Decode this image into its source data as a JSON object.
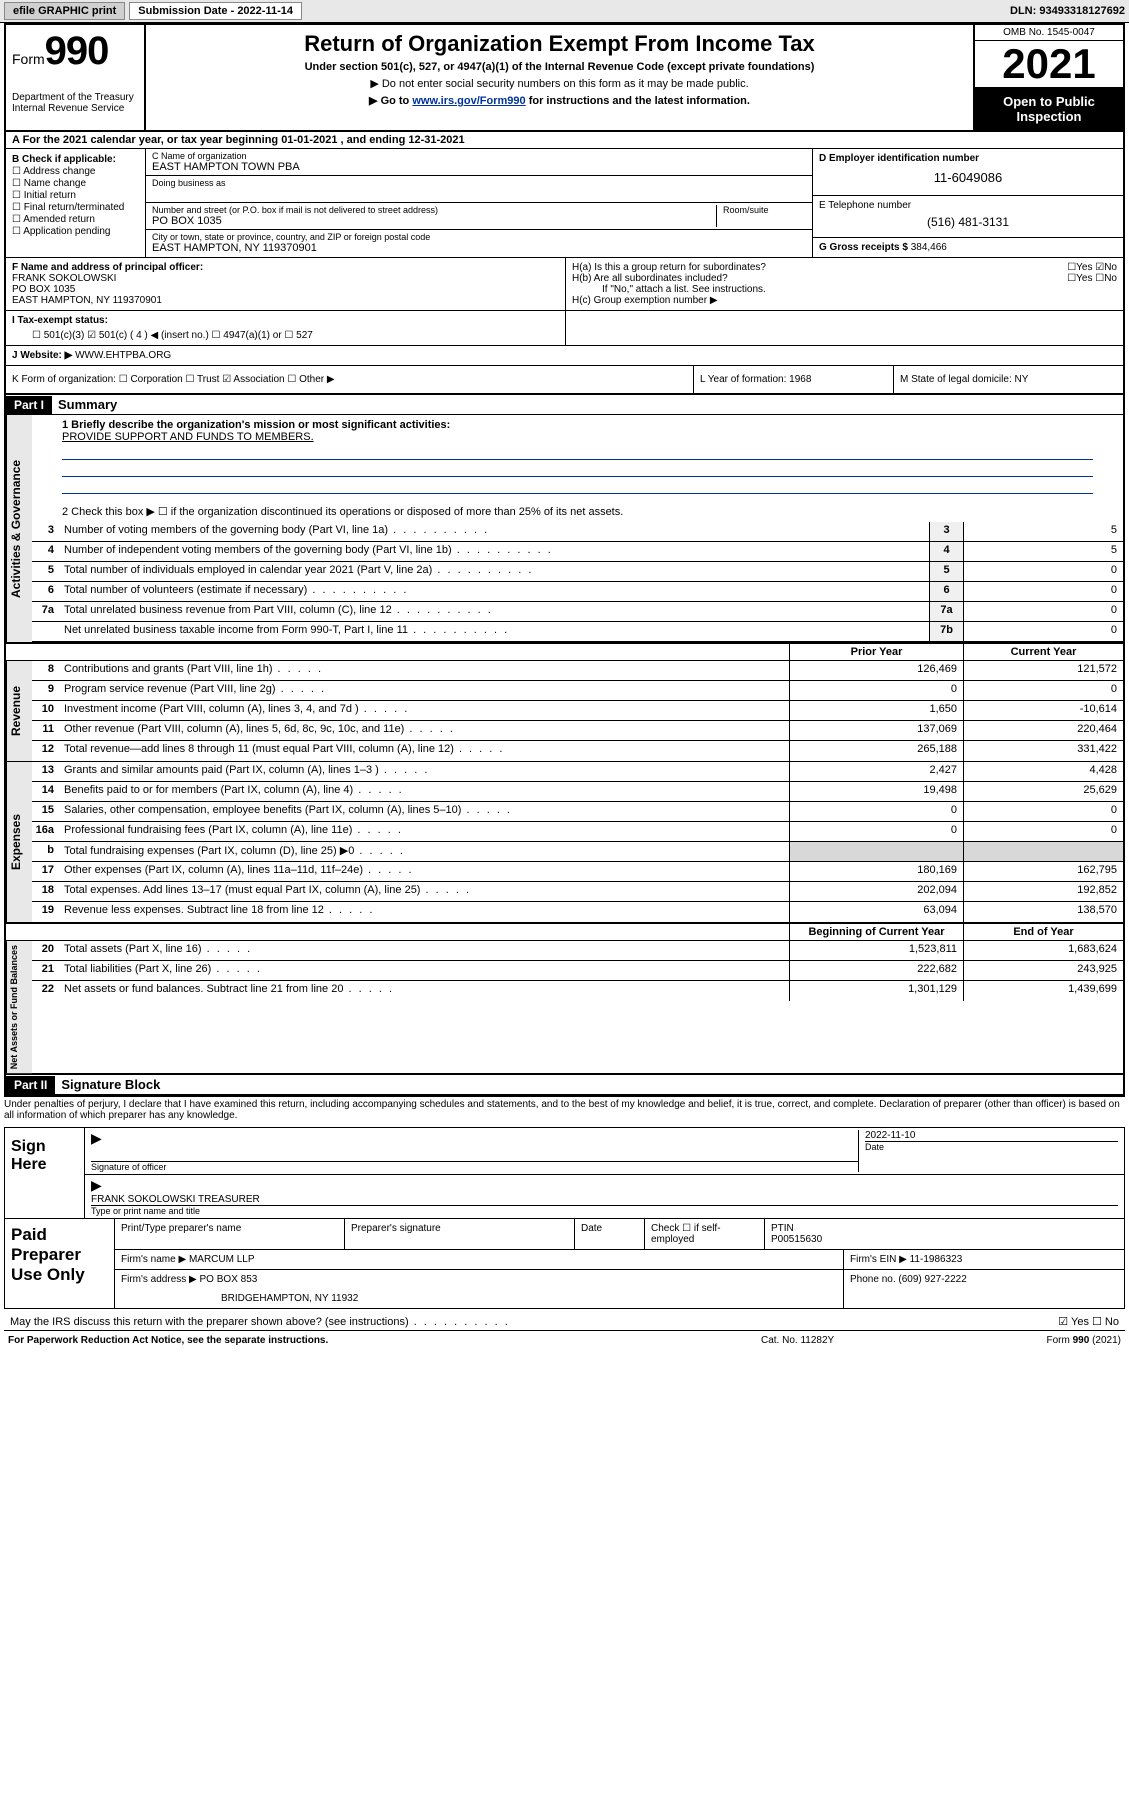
{
  "topbar": {
    "efile": "efile GRAPHIC print",
    "submission_label": "Submission Date - 2022-11-14",
    "dln": "DLN: 93493318127692"
  },
  "header": {
    "form_label": "Form",
    "form_num": "990",
    "dept": "Department of the Treasury Internal Revenue Service",
    "title": "Return of Organization Exempt From Income Tax",
    "sub": "Under section 501(c), 527, or 4947(a)(1) of the Internal Revenue Code (except private foundations)",
    "note1": "▶ Do not enter social security numbers on this form as it may be made public.",
    "note2_pre": "▶ Go to ",
    "note2_link": "www.irs.gov/Form990",
    "note2_post": " for instructions and the latest information.",
    "omb": "OMB No. 1545-0047",
    "year": "2021",
    "open": "Open to Public Inspection"
  },
  "row_a": "A For the 2021 calendar year, or tax year beginning 01-01-2021   , and ending 12-31-2021",
  "section_b": {
    "label": "B Check if applicable:",
    "opts": [
      "Address change",
      "Name change",
      "Initial return",
      "Final return/terminated",
      "Amended return",
      "Application pending"
    ]
  },
  "section_c": {
    "name_label": "C Name of organization",
    "name": "EAST HAMPTON TOWN PBA",
    "dba_label": "Doing business as",
    "addr_label": "Number and street (or P.O. box if mail is not delivered to street address)",
    "room_label": "Room/suite",
    "addr": "PO BOX 1035",
    "city_label": "City or town, state or province, country, and ZIP or foreign postal code",
    "city": "EAST HAMPTON, NY  119370901"
  },
  "section_d": {
    "label": "D Employer identification number",
    "ein": "11-6049086",
    "tel_label": "E Telephone number",
    "tel": "(516) 481-3131",
    "gross_label": "G Gross receipts $",
    "gross": "384,466"
  },
  "section_f": {
    "label": "F Name and address of principal officer:",
    "name": "FRANK SOKOLOWSKI",
    "addr1": "PO BOX 1035",
    "addr2": "EAST HAMPTON, NY  119370901"
  },
  "section_h": {
    "a": "H(a)  Is this a group return for subordinates?",
    "a_ans": "☐Yes ☑No",
    "b": "H(b)  Are all subordinates included?",
    "b_ans": "☐Yes ☐No",
    "b_note": "If \"No,\" attach a list. See instructions.",
    "c": "H(c)  Group exemption number ▶"
  },
  "section_i": {
    "label": "I   Tax-exempt status:",
    "opts": "☐ 501(c)(3)   ☑ 501(c) ( 4 ) ◀ (insert no.)   ☐ 4947(a)(1) or   ☐ 527"
  },
  "section_j": {
    "label": "J   Website: ▶",
    "val": "WWW.EHTPBA.ORG"
  },
  "section_k": "K Form of organization:  ☐ Corporation  ☐ Trust  ☑ Association  ☐ Other ▶",
  "section_l": "L Year of formation: 1968",
  "section_m": "M State of legal domicile: NY",
  "part1": {
    "hdr": "Part I",
    "title": "Summary",
    "line1": "1   Briefly describe the organization's mission or most significant activities:",
    "mission": "PROVIDE SUPPORT AND FUNDS TO MEMBERS.",
    "line2": "2   Check this box ▶ ☐  if the organization discontinued its operations or disposed of more than 25% of its net assets.",
    "vtab_gov": "Activities & Governance",
    "vtab_rev": "Revenue",
    "vtab_exp": "Expenses",
    "vtab_net": "Net Assets or Fund Balances",
    "col_prior": "Prior Year",
    "col_current": "Current Year",
    "col_begin": "Beginning of Current Year",
    "col_end": "End of Year",
    "lines_gov": [
      {
        "n": "3",
        "d": "Number of voting members of the governing body (Part VI, line 1a)",
        "box": "3",
        "v": "5"
      },
      {
        "n": "4",
        "d": "Number of independent voting members of the governing body (Part VI, line 1b)",
        "box": "4",
        "v": "5"
      },
      {
        "n": "5",
        "d": "Total number of individuals employed in calendar year 2021 (Part V, line 2a)",
        "box": "5",
        "v": "0"
      },
      {
        "n": "6",
        "d": "Total number of volunteers (estimate if necessary)",
        "box": "6",
        "v": "0"
      },
      {
        "n": "7a",
        "d": "Total unrelated business revenue from Part VIII, column (C), line 12",
        "box": "7a",
        "v": "0"
      },
      {
        "n": "",
        "d": "Net unrelated business taxable income from Form 990-T, Part I, line 11",
        "box": "7b",
        "v": "0"
      }
    ],
    "lines_rev": [
      {
        "n": "8",
        "d": "Contributions and grants (Part VIII, line 1h)",
        "p": "126,469",
        "c": "121,572"
      },
      {
        "n": "9",
        "d": "Program service revenue (Part VIII, line 2g)",
        "p": "0",
        "c": "0"
      },
      {
        "n": "10",
        "d": "Investment income (Part VIII, column (A), lines 3, 4, and 7d )",
        "p": "1,650",
        "c": "-10,614"
      },
      {
        "n": "11",
        "d": "Other revenue (Part VIII, column (A), lines 5, 6d, 8c, 9c, 10c, and 11e)",
        "p": "137,069",
        "c": "220,464"
      },
      {
        "n": "12",
        "d": "Total revenue—add lines 8 through 11 (must equal Part VIII, column (A), line 12)",
        "p": "265,188",
        "c": "331,422"
      }
    ],
    "lines_exp": [
      {
        "n": "13",
        "d": "Grants and similar amounts paid (Part IX, column (A), lines 1–3 )",
        "p": "2,427",
        "c": "4,428"
      },
      {
        "n": "14",
        "d": "Benefits paid to or for members (Part IX, column (A), line 4)",
        "p": "19,498",
        "c": "25,629"
      },
      {
        "n": "15",
        "d": "Salaries, other compensation, employee benefits (Part IX, column (A), lines 5–10)",
        "p": "0",
        "c": "0"
      },
      {
        "n": "16a",
        "d": "Professional fundraising fees (Part IX, column (A), line 11e)",
        "p": "0",
        "c": "0"
      },
      {
        "n": "b",
        "d": "Total fundraising expenses (Part IX, column (D), line 25) ▶0",
        "p": "",
        "c": "",
        "shade": true
      },
      {
        "n": "17",
        "d": "Other expenses (Part IX, column (A), lines 11a–11d, 11f–24e)",
        "p": "180,169",
        "c": "162,795"
      },
      {
        "n": "18",
        "d": "Total expenses. Add lines 13–17 (must equal Part IX, column (A), line 25)",
        "p": "202,094",
        "c": "192,852"
      },
      {
        "n": "19",
        "d": "Revenue less expenses. Subtract line 18 from line 12",
        "p": "63,094",
        "c": "138,570"
      }
    ],
    "lines_net": [
      {
        "n": "20",
        "d": "Total assets (Part X, line 16)",
        "p": "1,523,811",
        "c": "1,683,624"
      },
      {
        "n": "21",
        "d": "Total liabilities (Part X, line 26)",
        "p": "222,682",
        "c": "243,925"
      },
      {
        "n": "22",
        "d": "Net assets or fund balances. Subtract line 21 from line 20",
        "p": "1,301,129",
        "c": "1,439,699"
      }
    ]
  },
  "part2": {
    "hdr": "Part II",
    "title": "Signature Block",
    "penalty": "Under penalties of perjury, I declare that I have examined this return, including accompanying schedules and statements, and to the best of my knowledge and belief, it is true, correct, and complete. Declaration of preparer (other than officer) is based on all information of which preparer has any knowledge.",
    "sign_here": "Sign Here",
    "sig_officer": "Signature of officer",
    "sig_date": "2022-11-10",
    "date_label": "Date",
    "sig_name": "FRANK SOKOLOWSKI TREASURER",
    "sig_name_label": "Type or print name and title",
    "paid_prep": "Paid Preparer Use Only",
    "pp_name_label": "Print/Type preparer's name",
    "pp_sig_label": "Preparer's signature",
    "pp_date_label": "Date",
    "pp_check": "Check ☐ if self-employed",
    "pp_ptin_label": "PTIN",
    "pp_ptin": "P00515630",
    "firm_name_label": "Firm's name    ▶",
    "firm_name": "MARCUM LLP",
    "firm_ein_label": "Firm's EIN ▶",
    "firm_ein": "11-1986323",
    "firm_addr_label": "Firm's address ▶",
    "firm_addr1": "PO BOX 853",
    "firm_addr2": "BRIDGEHAMPTON, NY  11932",
    "phone_label": "Phone no.",
    "phone": "(609) 927-2222",
    "discuss": "May the IRS discuss this return with the preparer shown above? (see instructions)",
    "discuss_ans": "☑ Yes  ☐ No"
  },
  "footer": {
    "pra": "For Paperwork Reduction Act Notice, see the separate instructions.",
    "cat": "Cat. No. 11282Y",
    "form": "Form 990 (2021)"
  }
}
